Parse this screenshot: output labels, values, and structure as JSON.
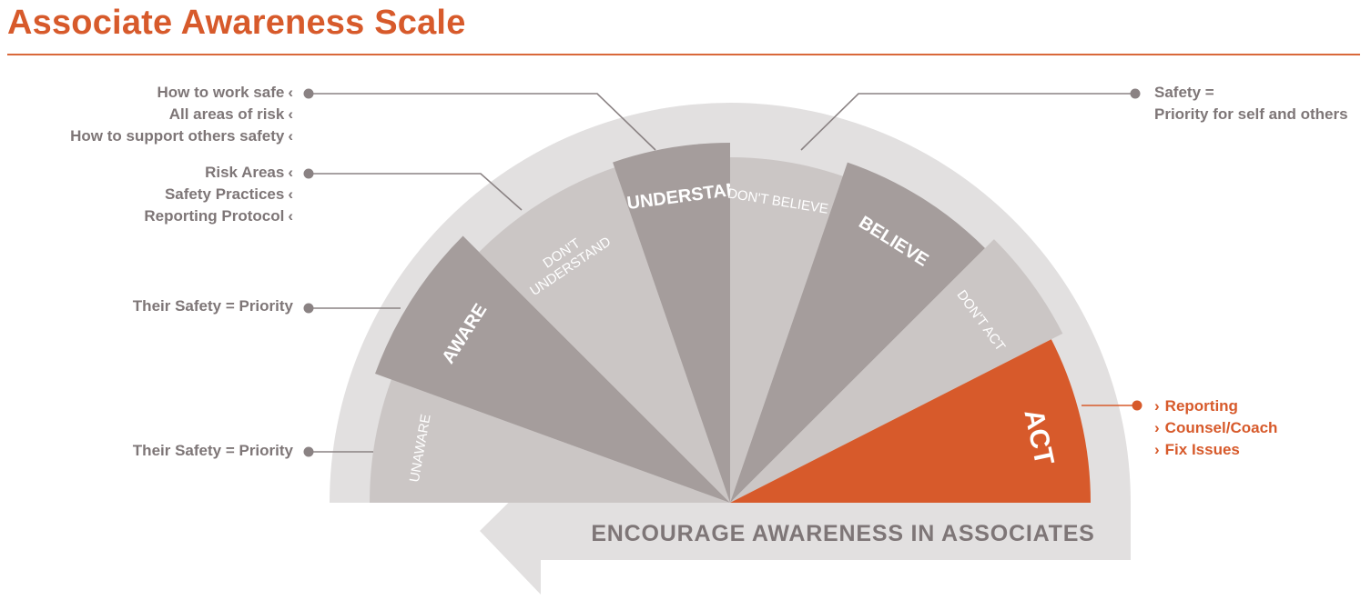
{
  "title": "Associate Awareness Scale",
  "colors": {
    "accent": "#d75a2b",
    "segment_dark": "#a59d9c",
    "segment_light": "#cbc6c5",
    "rim": "#e2e0e0",
    "leader": "#8a8283",
    "text_grey": "#7e7677"
  },
  "segments": [
    {
      "label": "UNAWARE",
      "tone": "light"
    },
    {
      "label": "AWARE",
      "tone": "dark"
    },
    {
      "label": "DON'T UNDERSTAND",
      "tone": "light"
    },
    {
      "label": "UNDERSTAND",
      "tone": "dark"
    },
    {
      "label": "DON'T BELIEVE",
      "tone": "light"
    },
    {
      "label": "BELIEVE",
      "tone": "dark"
    },
    {
      "label": "DON'T ACT",
      "tone": "light"
    },
    {
      "label": "ACT",
      "tone": "accent"
    }
  ],
  "arrow_text": "ENCOURAGE AWARENESS IN ASSOCIATES",
  "callouts_left": {
    "understand": [
      "How to work safe",
      "All areas of risk",
      "How to support others safety"
    ],
    "dont_understand": [
      "Risk Areas",
      "Safety Practices",
      "Reporting Protocol"
    ],
    "aware": "Their Safety = Priority",
    "unaware": "Their Safety = Priority"
  },
  "chevron_left": "‹",
  "chevron_right": "›",
  "callouts_right": {
    "believe": [
      "Safety =",
      "Priority for self and others"
    ],
    "act": [
      "Reporting",
      "Counsel/Coach",
      "Fix Issues"
    ]
  }
}
